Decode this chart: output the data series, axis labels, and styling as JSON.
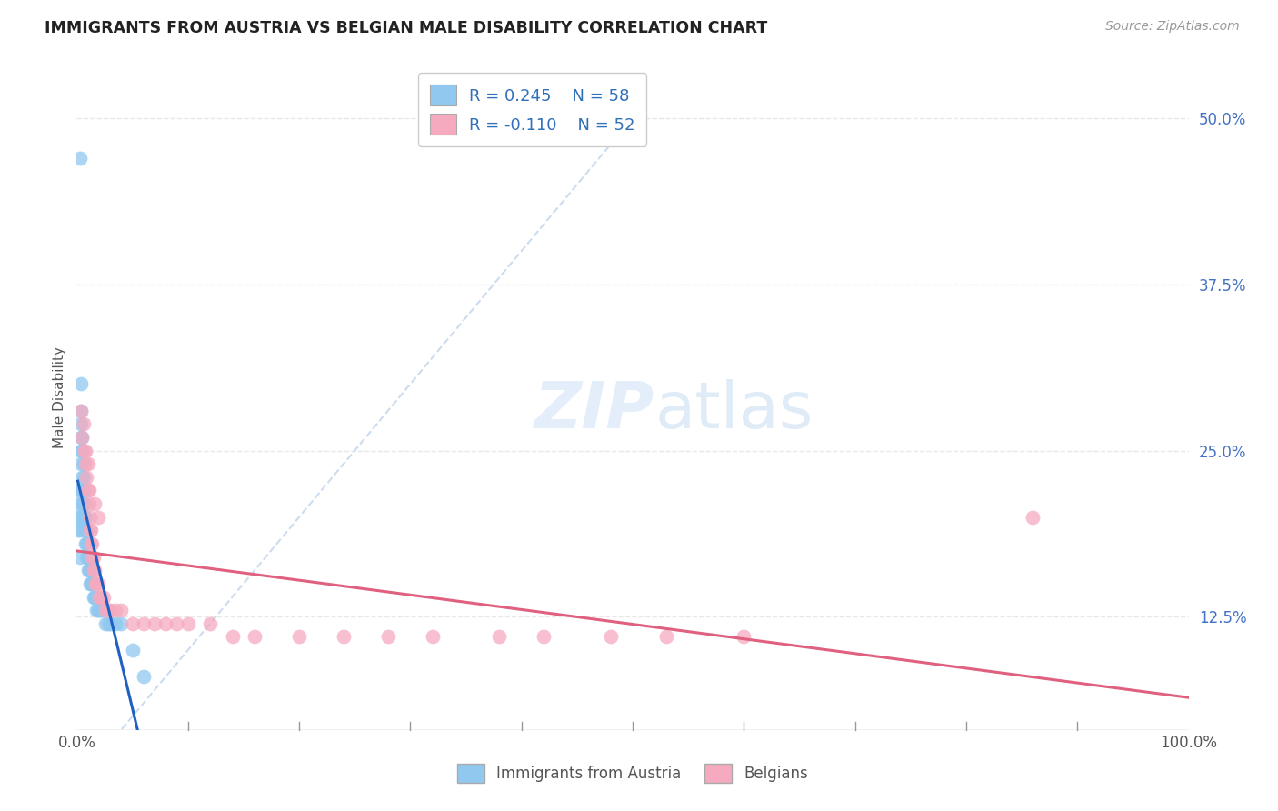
{
  "title": "IMMIGRANTS FROM AUSTRIA VS BELGIAN MALE DISABILITY CORRELATION CHART",
  "source_text": "Source: ZipAtlas.com",
  "ylabel": "Male Disability",
  "ytick_labels": [
    "12.5%",
    "25.0%",
    "37.5%",
    "50.0%"
  ],
  "ytick_values": [
    0.125,
    0.25,
    0.375,
    0.5
  ],
  "legend_label1": "Immigrants from Austria",
  "legend_label2": "Belgians",
  "legend_R1": "R = 0.245",
  "legend_N1": "N = 58",
  "legend_R2": "R = -0.110",
  "legend_N2": "N = 52",
  "color_austria": "#90C8F0",
  "color_belgium": "#F5AABF",
  "color_austria_line": "#2060C0",
  "color_belgium_line": "#E06080",
  "diagonal_color": "#C8D8EE",
  "background_color": "#FFFFFF",
  "grid_color": "#E8E8E8",
  "xlim": [
    0.0,
    1.0
  ],
  "ylim": [
    0.04,
    0.54
  ],
  "austria_x": [
    0.001,
    0.001,
    0.002,
    0.002,
    0.002,
    0.003,
    0.003,
    0.003,
    0.003,
    0.004,
    0.004,
    0.004,
    0.004,
    0.004,
    0.004,
    0.005,
    0.005,
    0.005,
    0.005,
    0.005,
    0.006,
    0.006,
    0.006,
    0.006,
    0.007,
    0.007,
    0.007,
    0.007,
    0.008,
    0.008,
    0.008,
    0.009,
    0.009,
    0.009,
    0.01,
    0.01,
    0.01,
    0.011,
    0.011,
    0.012,
    0.012,
    0.013,
    0.014,
    0.015,
    0.016,
    0.017,
    0.018,
    0.019,
    0.02,
    0.022,
    0.024,
    0.026,
    0.028,
    0.03,
    0.035,
    0.04,
    0.05,
    0.06
  ],
  "austria_y": [
    0.2,
    0.19,
    0.22,
    0.21,
    0.2,
    0.47,
    0.22,
    0.19,
    0.17,
    0.3,
    0.28,
    0.27,
    0.26,
    0.25,
    0.24,
    0.26,
    0.25,
    0.23,
    0.22,
    0.21,
    0.24,
    0.23,
    0.21,
    0.2,
    0.22,
    0.21,
    0.2,
    0.19,
    0.2,
    0.19,
    0.18,
    0.19,
    0.18,
    0.17,
    0.18,
    0.17,
    0.16,
    0.17,
    0.16,
    0.16,
    0.15,
    0.15,
    0.15,
    0.14,
    0.14,
    0.14,
    0.13,
    0.13,
    0.13,
    0.13,
    0.13,
    0.12,
    0.12,
    0.12,
    0.12,
    0.12,
    0.1,
    0.08
  ],
  "belgium_x": [
    0.004,
    0.005,
    0.006,
    0.007,
    0.008,
    0.008,
    0.009,
    0.01,
    0.01,
    0.011,
    0.011,
    0.012,
    0.012,
    0.013,
    0.013,
    0.014,
    0.014,
    0.015,
    0.015,
    0.016,
    0.017,
    0.018,
    0.019,
    0.02,
    0.022,
    0.024,
    0.026,
    0.028,
    0.03,
    0.035,
    0.04,
    0.05,
    0.06,
    0.07,
    0.08,
    0.09,
    0.1,
    0.12,
    0.14,
    0.16,
    0.2,
    0.24,
    0.28,
    0.32,
    0.38,
    0.42,
    0.48,
    0.53,
    0.6,
    0.86,
    0.016,
    0.019
  ],
  "belgium_y": [
    0.28,
    0.26,
    0.27,
    0.25,
    0.24,
    0.25,
    0.23,
    0.22,
    0.24,
    0.22,
    0.21,
    0.2,
    0.19,
    0.19,
    0.18,
    0.18,
    0.17,
    0.17,
    0.16,
    0.16,
    0.15,
    0.15,
    0.15,
    0.14,
    0.14,
    0.14,
    0.13,
    0.13,
    0.13,
    0.13,
    0.13,
    0.12,
    0.12,
    0.12,
    0.12,
    0.12,
    0.12,
    0.12,
    0.11,
    0.11,
    0.11,
    0.11,
    0.11,
    0.11,
    0.11,
    0.11,
    0.11,
    0.11,
    0.11,
    0.2,
    0.21,
    0.2
  ]
}
